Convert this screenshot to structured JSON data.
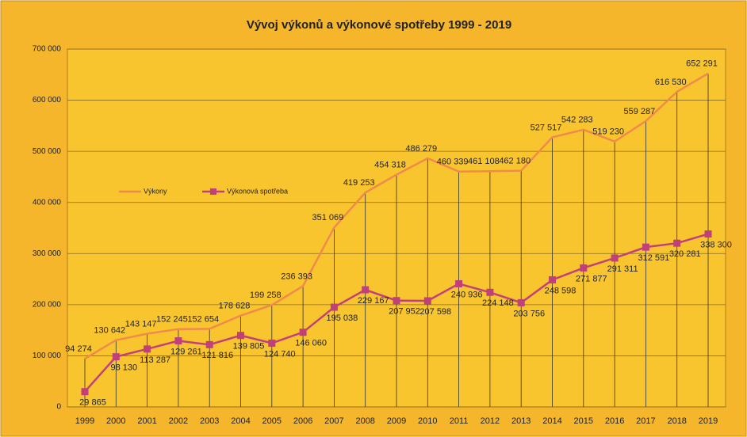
{
  "chart_data": {
    "type": "line",
    "title": "Vývoj výkonů a výkonové spotřeby 1999 - 2019",
    "categories": [
      "1999",
      "2000",
      "2001",
      "2002",
      "2003",
      "2004",
      "2005",
      "2006",
      "2007",
      "2008",
      "2009",
      "2010",
      "2011",
      "2012",
      "2013",
      "2014",
      "2015",
      "2016",
      "2017",
      "2018",
      "2019"
    ],
    "series": [
      {
        "name": "Výkony",
        "color": "#f08a4b",
        "values": [
          94274,
          130642,
          143147,
          152245,
          152654,
          178628,
          199258,
          236393,
          351069,
          419253,
          454318,
          486279,
          460339,
          461108,
          462180,
          527517,
          542283,
          519230,
          559287,
          616530,
          652291
        ],
        "value_labels": [
          "94 274",
          "130 642",
          "143 147",
          "152 245",
          "152 654",
          "178 628",
          "199 258",
          "236 393",
          "351 069",
          "419 253",
          "454 318",
          "486 279",
          "460 339",
          "461 108",
          "462 180",
          "527 517",
          "542 283",
          "519 230",
          "559 287",
          "616 530",
          "652 291"
        ]
      },
      {
        "name": "Výkonová spotřeba",
        "color": "#c2407a",
        "values": [
          29865,
          98130,
          113287,
          129261,
          121816,
          139805,
          124740,
          146060,
          195038,
          229167,
          207952,
          207598,
          240936,
          224148,
          203756,
          248598,
          271877,
          291311,
          312591,
          320281,
          338300
        ],
        "value_labels": [
          "29 865",
          "98 130",
          "113 287",
          "129 261",
          "121 816",
          "139 805",
          "124 740",
          "146 060",
          "195 038",
          "229 167",
          "207 952",
          "207 598",
          "240 936",
          "224 148",
          "203 756",
          "248 598",
          "271 877",
          "291 311",
          "312 591",
          "320 281",
          "338 300"
        ]
      }
    ],
    "ylim": [
      0,
      700000
    ],
    "yticks": [
      0,
      {
        "value": 100000,
        "label": "100 000"
      },
      {
        "value": 200000,
        "label": "200 000"
      },
      {
        "value": 300000,
        "label": "300 000"
      },
      {
        "value": 400000,
        "label": "400 000"
      },
      {
        "value": 500000,
        "label": "500 000"
      },
      {
        "value": 600000,
        "label": "600 000"
      },
      {
        "value": 700000,
        "label": "700 000"
      }
    ],
    "grid": true
  }
}
